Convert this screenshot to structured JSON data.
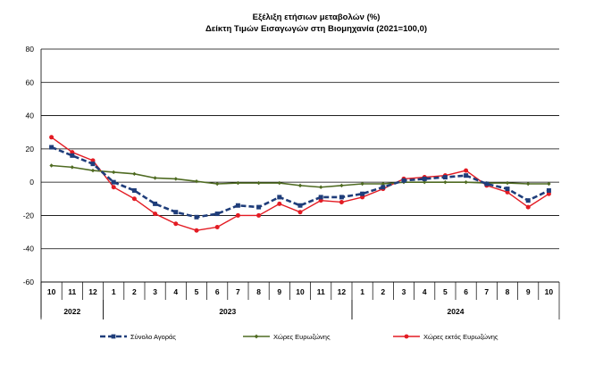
{
  "chart_data": {
    "type": "line",
    "title": "Εξέλιξη ετήσιων μεταβολών (%)",
    "subtitle": "Δείκτη Τιμών Εισαγωγών στη Βιομηχανία (2021=100,0)",
    "ylim": [
      -60,
      80
    ],
    "yticks": [
      -60,
      -40,
      -20,
      0,
      20,
      40,
      60,
      80
    ],
    "grid": true,
    "legend_position": "bottom",
    "months": [
      "10",
      "11",
      "12",
      "1",
      "2",
      "3",
      "4",
      "5",
      "6",
      "7",
      "8",
      "9",
      "10",
      "11",
      "12",
      "1",
      "2",
      "3",
      "4",
      "5",
      "6",
      "7",
      "8",
      "9",
      "10"
    ],
    "years": [
      {
        "label": "2022",
        "start": 0,
        "end": 3
      },
      {
        "label": "2023",
        "start": 3,
        "end": 15
      },
      {
        "label": "2024",
        "start": 15,
        "end": 25
      }
    ],
    "series": [
      {
        "name": "Σύνολο Αγοράς",
        "color": "#1f3d7a",
        "style": "dashed-square",
        "values": [
          21,
          16,
          11,
          0,
          -5,
          -13,
          -18,
          -21,
          -19,
          -14,
          -15,
          -9,
          -14,
          -9,
          -9,
          -7,
          -3,
          1,
          2,
          3,
          4,
          -1,
          -4,
          -11,
          -5
        ]
      },
      {
        "name": "Χώρες Ευρωζώνης",
        "color": "#4f6b22",
        "style": "solid-diamond",
        "values": [
          10,
          9,
          7,
          6,
          5,
          2.5,
          2,
          0.5,
          -1,
          -0.5,
          -0.5,
          -0.5,
          -2,
          -3,
          -2,
          -1,
          -1,
          0,
          0,
          0,
          0,
          -0.5,
          -0.5,
          -1,
          -1
        ]
      },
      {
        "name": "Χώρες εκτός Ευρωζώνης",
        "color": "#e31b23",
        "style": "solid-circle",
        "values": [
          27,
          18,
          13,
          -3,
          -10,
          -19,
          -25,
          -29,
          -27,
          -20,
          -20,
          -13,
          -18,
          -11,
          -12,
          -9,
          -4,
          2,
          3,
          4,
          7,
          -2,
          -6,
          -15,
          -7
        ]
      }
    ]
  }
}
